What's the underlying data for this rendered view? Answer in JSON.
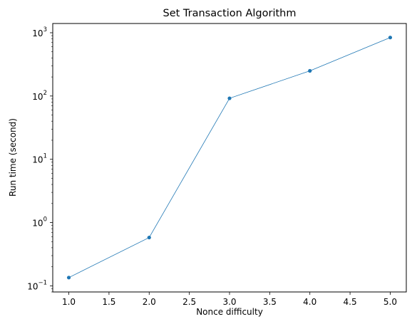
{
  "chart_data": {
    "type": "line",
    "title": "Set Transaction Algorithm",
    "xlabel": "Nonce difficulty",
    "ylabel": "Run time (second)",
    "yscale": "log",
    "grid": false,
    "legend": "none",
    "color": "#1f77b4",
    "xlim": [
      0.8,
      5.2
    ],
    "ylim": [
      0.08,
      1400
    ],
    "x_ticks": [
      "1.0",
      "1.5",
      "2.0",
      "2.5",
      "3.0",
      "3.5",
      "4.0",
      "4.5",
      "5.0"
    ],
    "y_ticks": [
      {
        "base": "10",
        "exp": "−1",
        "value": 0.1
      },
      {
        "base": "10",
        "exp": "0",
        "value": 1
      },
      {
        "base": "10",
        "exp": "1",
        "value": 10
      },
      {
        "base": "10",
        "exp": "2",
        "value": 100
      },
      {
        "base": "10",
        "exp": "3",
        "value": 1000
      }
    ],
    "series": [
      {
        "x": [
          1,
          2,
          3,
          4,
          5
        ],
        "y": [
          0.135,
          0.58,
          92,
          250,
          840
        ]
      }
    ]
  }
}
